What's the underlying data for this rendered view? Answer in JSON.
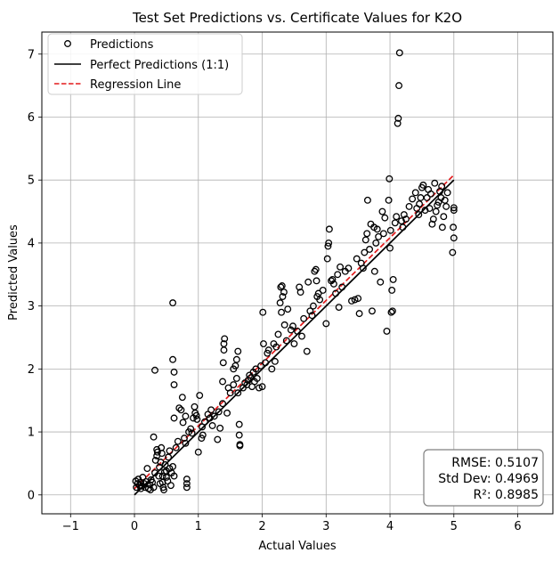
{
  "chart_data": {
    "type": "scatter",
    "title": "Test Set Predictions vs. Certificate Values for K2O",
    "xlabel": "Actual Values",
    "ylabel": "Predicted Values",
    "xlim": [
      -1.45,
      6.55
    ],
    "ylim": [
      -0.3,
      7.35
    ],
    "x_ticks": [
      -1,
      0,
      1,
      2,
      3,
      4,
      5,
      6
    ],
    "y_ticks": [
      0,
      1,
      2,
      3,
      4,
      5,
      6,
      7
    ],
    "grid": true,
    "legend_position": "top-left",
    "legend": [
      "Predictions",
      "Perfect Predictions (1:1)",
      "Regression Line"
    ],
    "series": [
      {
        "name": "Predictions",
        "style": "scatter",
        "marker": "open-circle",
        "color": "#000000",
        "points": [
          [
            0.02,
            0.22
          ],
          [
            0.03,
            0.12
          ],
          [
            0.05,
            0.18
          ],
          [
            0.06,
            0.25
          ],
          [
            0.08,
            0.15
          ],
          [
            0.1,
            0.1
          ],
          [
            0.1,
            0.2
          ],
          [
            0.12,
            0.14
          ],
          [
            0.13,
            0.28
          ],
          [
            0.15,
            0.18
          ],
          [
            0.17,
            0.12
          ],
          [
            0.18,
            0.21
          ],
          [
            0.2,
            0.42
          ],
          [
            0.22,
            0.1
          ],
          [
            0.24,
            0.16
          ],
          [
            0.25,
            0.08
          ],
          [
            0.26,
            0.24
          ],
          [
            0.28,
            0.2
          ],
          [
            0.3,
            0.12
          ],
          [
            0.32,
            0.35
          ],
          [
            0.33,
            0.55
          ],
          [
            0.35,
            0.62
          ],
          [
            0.36,
            0.68
          ],
          [
            0.38,
            0.3
          ],
          [
            0.39,
            0.44
          ],
          [
            0.4,
            0.18
          ],
          [
            0.41,
            0.52
          ],
          [
            0.42,
            0.75
          ],
          [
            0.43,
            0.66
          ],
          [
            0.44,
            0.2
          ],
          [
            0.45,
            0.12
          ],
          [
            0.46,
            0.08
          ],
          [
            0.47,
            0.36
          ],
          [
            0.48,
            0.48
          ],
          [
            0.5,
            0.28
          ],
          [
            0.5,
            0.38
          ],
          [
            0.52,
            0.22
          ],
          [
            0.53,
            0.6
          ],
          [
            0.55,
            0.42
          ],
          [
            0.55,
            0.7
          ],
          [
            0.57,
            0.15
          ],
          [
            0.58,
            0.35
          ],
          [
            0.6,
            0.45
          ],
          [
            0.62,
            0.3
          ],
          [
            0.3,
            0.92
          ],
          [
            0.32,
            1.98
          ],
          [
            0.35,
            0.72
          ],
          [
            0.44,
            0.3
          ],
          [
            0.6,
            3.05
          ],
          [
            0.6,
            2.15
          ],
          [
            0.62,
            1.95
          ],
          [
            0.62,
            1.75
          ],
          [
            0.62,
            1.22
          ],
          [
            0.65,
            0.75
          ],
          [
            0.68,
            0.85
          ],
          [
            0.7,
            1.38
          ],
          [
            0.73,
            1.35
          ],
          [
            0.75,
            1.55
          ],
          [
            0.76,
            1.15
          ],
          [
            0.78,
            0.9
          ],
          [
            0.8,
            0.82
          ],
          [
            0.8,
            1.25
          ],
          [
            0.82,
            0.12
          ],
          [
            0.82,
            0.18
          ],
          [
            0.82,
            0.25
          ],
          [
            0.85,
            1.0
          ],
          [
            0.88,
            1.05
          ],
          [
            0.9,
            0.98
          ],
          [
            0.92,
            1.22
          ],
          [
            0.94,
            1.4
          ],
          [
            0.95,
            1.3
          ],
          [
            0.97,
            1.26
          ],
          [
            0.98,
            1.2
          ],
          [
            1.0,
            0.68
          ],
          [
            1.02,
            1.58
          ],
          [
            1.05,
            0.9
          ],
          [
            1.06,
            1.08
          ],
          [
            1.07,
            0.95
          ],
          [
            1.1,
            1.16
          ],
          [
            1.15,
            1.28
          ],
          [
            1.18,
            1.22
          ],
          [
            1.2,
            1.35
          ],
          [
            1.22,
            1.1
          ],
          [
            1.25,
            1.25
          ],
          [
            1.3,
            0.88
          ],
          [
            1.32,
            1.32
          ],
          [
            1.34,
            1.06
          ],
          [
            1.38,
            1.45
          ],
          [
            1.38,
            1.8
          ],
          [
            1.39,
            2.1
          ],
          [
            1.4,
            2.3
          ],
          [
            1.4,
            2.4
          ],
          [
            1.41,
            2.48
          ],
          [
            1.45,
            1.3
          ],
          [
            1.47,
            1.7
          ],
          [
            1.5,
            1.62
          ],
          [
            1.55,
            1.75
          ],
          [
            1.55,
            2.0
          ],
          [
            1.58,
            2.05
          ],
          [
            1.6,
            1.85
          ],
          [
            1.6,
            2.15
          ],
          [
            1.62,
            2.28
          ],
          [
            1.62,
            1.62
          ],
          [
            1.64,
            1.12
          ],
          [
            1.64,
            0.95
          ],
          [
            1.65,
            0.8
          ],
          [
            1.65,
            0.78
          ],
          [
            1.7,
            1.7
          ],
          [
            1.73,
            1.78
          ],
          [
            1.76,
            1.75
          ],
          [
            1.78,
            1.82
          ],
          [
            1.8,
            1.9
          ],
          [
            1.82,
            1.86
          ],
          [
            1.84,
            1.72
          ],
          [
            1.86,
            1.95
          ],
          [
            1.88,
            1.8
          ],
          [
            1.9,
            2.0
          ],
          [
            1.92,
            1.85
          ],
          [
            1.95,
            1.7
          ],
          [
            1.98,
            2.05
          ],
          [
            2.0,
            1.72
          ],
          [
            2.01,
            2.9
          ],
          [
            2.02,
            2.4
          ],
          [
            2.05,
            2.1
          ],
          [
            2.08,
            2.25
          ],
          [
            2.1,
            2.3
          ],
          [
            2.15,
            2.0
          ],
          [
            2.18,
            2.4
          ],
          [
            2.2,
            2.12
          ],
          [
            2.22,
            2.35
          ],
          [
            2.25,
            2.55
          ],
          [
            2.28,
            3.05
          ],
          [
            2.29,
            3.3
          ],
          [
            2.3,
            2.9
          ],
          [
            2.31,
            3.32
          ],
          [
            2.32,
            3.15
          ],
          [
            2.34,
            3.22
          ],
          [
            2.35,
            2.7
          ],
          [
            2.38,
            2.45
          ],
          [
            2.4,
            2.95
          ],
          [
            2.45,
            2.62
          ],
          [
            2.48,
            2.68
          ],
          [
            2.5,
            2.4
          ],
          [
            2.55,
            2.6
          ],
          [
            2.58,
            3.3
          ],
          [
            2.6,
            3.22
          ],
          [
            2.62,
            2.52
          ],
          [
            2.65,
            2.8
          ],
          [
            2.7,
            2.28
          ],
          [
            2.72,
            3.38
          ],
          [
            2.75,
            2.92
          ],
          [
            2.78,
            2.85
          ],
          [
            2.8,
            3.0
          ],
          [
            2.82,
            3.55
          ],
          [
            2.84,
            3.58
          ],
          [
            2.85,
            3.4
          ],
          [
            2.86,
            3.15
          ],
          [
            2.88,
            3.2
          ],
          [
            2.9,
            3.1
          ],
          [
            2.95,
            3.25
          ],
          [
            3.0,
            2.72
          ],
          [
            3.02,
            3.75
          ],
          [
            3.03,
            3.95
          ],
          [
            3.04,
            4.0
          ],
          [
            3.05,
            4.22
          ],
          [
            3.08,
            3.4
          ],
          [
            3.1,
            3.42
          ],
          [
            3.12,
            3.35
          ],
          [
            3.15,
            3.2
          ],
          [
            3.18,
            3.5
          ],
          [
            3.2,
            2.98
          ],
          [
            3.22,
            3.62
          ],
          [
            3.25,
            3.3
          ],
          [
            3.3,
            3.55
          ],
          [
            3.35,
            3.6
          ],
          [
            3.4,
            3.08
          ],
          [
            3.45,
            3.1
          ],
          [
            3.48,
            3.75
          ],
          [
            3.5,
            3.12
          ],
          [
            3.52,
            2.88
          ],
          [
            3.55,
            3.68
          ],
          [
            3.58,
            3.6
          ],
          [
            3.6,
            3.85
          ],
          [
            3.62,
            4.05
          ],
          [
            3.64,
            4.15
          ],
          [
            3.65,
            4.68
          ],
          [
            3.68,
            3.9
          ],
          [
            3.7,
            4.3
          ],
          [
            3.72,
            2.92
          ],
          [
            3.75,
            4.25
          ],
          [
            3.76,
            3.55
          ],
          [
            3.78,
            4.0
          ],
          [
            3.8,
            4.22
          ],
          [
            3.82,
            4.1
          ],
          [
            3.85,
            3.38
          ],
          [
            3.88,
            4.5
          ],
          [
            3.9,
            4.15
          ],
          [
            3.92,
            4.4
          ],
          [
            3.95,
            2.6
          ],
          [
            3.98,
            4.68
          ],
          [
            3.99,
            5.02
          ],
          [
            4.0,
            3.92
          ],
          [
            4.01,
            4.2
          ],
          [
            4.02,
            2.9
          ],
          [
            4.03,
            3.25
          ],
          [
            4.04,
            2.92
          ],
          [
            4.05,
            3.42
          ],
          [
            4.08,
            4.32
          ],
          [
            4.1,
            4.42
          ],
          [
            4.12,
            5.9
          ],
          [
            4.13,
            5.98
          ],
          [
            4.14,
            6.5
          ],
          [
            4.15,
            7.02
          ],
          [
            4.18,
            4.35
          ],
          [
            4.2,
            4.25
          ],
          [
            4.22,
            4.45
          ],
          [
            4.25,
            4.38
          ],
          [
            4.3,
            4.58
          ],
          [
            4.35,
            4.7
          ],
          [
            4.4,
            4.8
          ],
          [
            4.42,
            4.55
          ],
          [
            4.45,
            4.45
          ],
          [
            4.46,
            4.62
          ],
          [
            4.48,
            4.72
          ],
          [
            4.5,
            4.88
          ],
          [
            4.52,
            4.92
          ],
          [
            4.55,
            4.52
          ],
          [
            4.58,
            4.72
          ],
          [
            4.6,
            4.85
          ],
          [
            4.62,
            4.55
          ],
          [
            4.64,
            4.78
          ],
          [
            4.66,
            4.3
          ],
          [
            4.68,
            4.38
          ],
          [
            4.7,
            4.95
          ],
          [
            4.72,
            4.5
          ],
          [
            4.74,
            4.6
          ],
          [
            4.76,
            4.65
          ],
          [
            4.78,
            4.82
          ],
          [
            4.8,
            4.72
          ],
          [
            4.81,
            4.9
          ],
          [
            4.82,
            4.25
          ],
          [
            4.84,
            4.42
          ],
          [
            4.86,
            4.68
          ],
          [
            4.88,
            4.58
          ],
          [
            4.9,
            4.8
          ],
          [
            4.98,
            3.85
          ],
          [
            4.99,
            4.25
          ],
          [
            5.0,
            4.08
          ],
          [
            5.0,
            4.52
          ],
          [
            5.0,
            4.56
          ]
        ]
      },
      {
        "name": "Perfect Predictions (1:1)",
        "style": "line",
        "color": "#000000",
        "x": [
          0,
          5
        ],
        "y": [
          0,
          5
        ]
      },
      {
        "name": "Regression Line",
        "style": "dashed-line",
        "color": "#e31a1c",
        "x": [
          0,
          5
        ],
        "y": [
          0.1,
          5.08
        ]
      }
    ],
    "annotation": [
      "RMSE: 0.5107",
      "Std Dev: 0.4969",
      "R²: 0.8985"
    ],
    "annotation_position": "bottom-right"
  }
}
